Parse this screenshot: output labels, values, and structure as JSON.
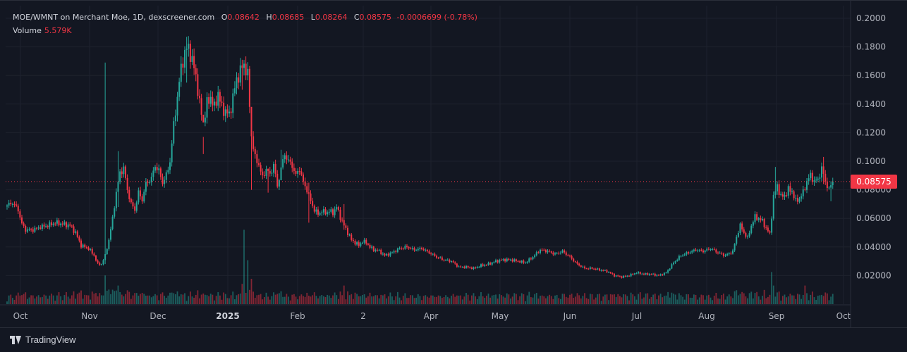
{
  "legend": {
    "symbol": "MOE/WMNT on Merchant Moe, 1D, dexscreener.com",
    "o_label": "O",
    "o": "0.08642",
    "h_label": "H",
    "h": "0.08685",
    "l_label": "L",
    "l": "0.08264",
    "c_label": "C",
    "c": "0.08575",
    "change": "-0.0006699 (-0.78%)",
    "volume_label": "Volume",
    "volume": "5.579K"
  },
  "last_price_tag": "0.08575",
  "footer": {
    "brand": "TradingView"
  },
  "colors": {
    "background": "#131722",
    "up": "#26a69a",
    "down": "#f23645",
    "grid": "#1e222d",
    "text": "#b2b5be"
  },
  "chart_data": {
    "type": "candlestick",
    "title": "MOE/WMNT on Merchant Moe, 1D, dexscreener.com",
    "ylim": [
      0,
      0.2
    ],
    "y_ticks": [
      "0.02000",
      "0.04000",
      "0.06000",
      "0.08000",
      "0.1000",
      "0.1200",
      "0.1400",
      "0.1600",
      "0.1800",
      "0.2000"
    ],
    "x_ticks": [
      {
        "label": "Oct",
        "bold": false
      },
      {
        "label": "Nov",
        "bold": false
      },
      {
        "label": "Dec",
        "bold": false
      },
      {
        "label": "2025",
        "bold": true
      },
      {
        "label": "Feb",
        "bold": false
      },
      {
        "label": "2",
        "bold": false
      },
      {
        "label": "Apr",
        "bold": false
      },
      {
        "label": "May",
        "bold": false
      },
      {
        "label": "Jun",
        "bold": false
      },
      {
        "label": "Jul",
        "bold": false
      },
      {
        "label": "Aug",
        "bold": false
      },
      {
        "label": "Sep",
        "bold": false
      },
      {
        "label": "Oct",
        "bold": false
      }
    ],
    "last_price": 0.08575,
    "close_path": [
      [
        0,
        0.069
      ],
      [
        3,
        0.071
      ],
      [
        6,
        0.066
      ],
      [
        8,
        0.056
      ],
      [
        10,
        0.052
      ],
      [
        14,
        0.052
      ],
      [
        18,
        0.054
      ],
      [
        22,
        0.055
      ],
      [
        26,
        0.057
      ],
      [
        30,
        0.056
      ],
      [
        34,
        0.055
      ],
      [
        37,
        0.05
      ],
      [
        40,
        0.041
      ],
      [
        44,
        0.039
      ],
      [
        47,
        0.034
      ],
      [
        49,
        0.028
      ],
      [
        51,
        0.028
      ],
      [
        53,
        0.034
      ],
      [
        55,
        0.045
      ],
      [
        57,
        0.06
      ],
      [
        59,
        0.078
      ],
      [
        61,
        0.092
      ],
      [
        63,
        0.095
      ],
      [
        65,
        0.08
      ],
      [
        67,
        0.07
      ],
      [
        69,
        0.066
      ],
      [
        71,
        0.078
      ],
      [
        73,
        0.073
      ],
      [
        75,
        0.084
      ],
      [
        78,
        0.088
      ],
      [
        80,
        0.097
      ],
      [
        82,
        0.093
      ],
      [
        84,
        0.085
      ],
      [
        86,
        0.09
      ],
      [
        88,
        0.1
      ],
      [
        90,
        0.125
      ],
      [
        92,
        0.145
      ],
      [
        94,
        0.165
      ],
      [
        96,
        0.176
      ],
      [
        98,
        0.18
      ],
      [
        100,
        0.17
      ],
      [
        102,
        0.16
      ],
      [
        104,
        0.14
      ],
      [
        106,
        0.127
      ],
      [
        108,
        0.14
      ],
      [
        110,
        0.145
      ],
      [
        112,
        0.137
      ],
      [
        114,
        0.148
      ],
      [
        116,
        0.137
      ],
      [
        118,
        0.135
      ],
      [
        120,
        0.132
      ],
      [
        122,
        0.145
      ],
      [
        124,
        0.157
      ],
      [
        126,
        0.163
      ],
      [
        128,
        0.168
      ],
      [
        130,
        0.16
      ],
      [
        132,
        0.118
      ],
      [
        134,
        0.102
      ],
      [
        136,
        0.098
      ],
      [
        138,
        0.088
      ],
      [
        140,
        0.095
      ],
      [
        142,
        0.09
      ],
      [
        144,
        0.098
      ],
      [
        146,
        0.082
      ],
      [
        148,
        0.095
      ],
      [
        150,
        0.105
      ],
      [
        152,
        0.1
      ],
      [
        154,
        0.097
      ],
      [
        156,
        0.09
      ],
      [
        158,
        0.095
      ],
      [
        160,
        0.085
      ],
      [
        162,
        0.08
      ],
      [
        164,
        0.072
      ],
      [
        166,
        0.066
      ],
      [
        168,
        0.063
      ],
      [
        170,
        0.065
      ],
      [
        172,
        0.064
      ],
      [
        174,
        0.065
      ],
      [
        176,
        0.064
      ],
      [
        178,
        0.068
      ],
      [
        180,
        0.061
      ],
      [
        182,
        0.055
      ],
      [
        184,
        0.05
      ],
      [
        186,
        0.045
      ],
      [
        188,
        0.043
      ],
      [
        190,
        0.041
      ],
      [
        192,
        0.044
      ],
      [
        194,
        0.043
      ],
      [
        196,
        0.04
      ],
      [
        198,
        0.038
      ],
      [
        200,
        0.038
      ],
      [
        204,
        0.034
      ],
      [
        208,
        0.036
      ],
      [
        212,
        0.039
      ],
      [
        216,
        0.04
      ],
      [
        220,
        0.038
      ],
      [
        224,
        0.039
      ],
      [
        228,
        0.036
      ],
      [
        232,
        0.033
      ],
      [
        236,
        0.031
      ],
      [
        240,
        0.03
      ],
      [
        244,
        0.026
      ],
      [
        248,
        0.026
      ],
      [
        252,
        0.025
      ],
      [
        256,
        0.027
      ],
      [
        260,
        0.028
      ],
      [
        264,
        0.03
      ],
      [
        268,
        0.031
      ],
      [
        272,
        0.031
      ],
      [
        276,
        0.03
      ],
      [
        280,
        0.029
      ],
      [
        284,
        0.033
      ],
      [
        288,
        0.038
      ],
      [
        292,
        0.037
      ],
      [
        296,
        0.035
      ],
      [
        300,
        0.037
      ],
      [
        304,
        0.033
      ],
      [
        308,
        0.028
      ],
      [
        312,
        0.025
      ],
      [
        316,
        0.025
      ],
      [
        320,
        0.024
      ],
      [
        324,
        0.023
      ],
      [
        328,
        0.02
      ],
      [
        332,
        0.019
      ],
      [
        336,
        0.02
      ],
      [
        340,
        0.022
      ],
      [
        344,
        0.021
      ],
      [
        348,
        0.021
      ],
      [
        352,
        0.02
      ],
      [
        356,
        0.022
      ],
      [
        360,
        0.029
      ],
      [
        364,
        0.034
      ],
      [
        368,
        0.036
      ],
      [
        372,
        0.038
      ],
      [
        376,
        0.037
      ],
      [
        380,
        0.039
      ],
      [
        384,
        0.036
      ],
      [
        388,
        0.034
      ],
      [
        392,
        0.037
      ],
      [
        394,
        0.047
      ],
      [
        396,
        0.055
      ],
      [
        398,
        0.05
      ],
      [
        400,
        0.046
      ],
      [
        402,
        0.055
      ],
      [
        404,
        0.061
      ],
      [
        406,
        0.06
      ],
      [
        408,
        0.058
      ],
      [
        410,
        0.053
      ],
      [
        412,
        0.049
      ],
      [
        414,
        0.075
      ],
      [
        416,
        0.083
      ],
      [
        418,
        0.075
      ],
      [
        420,
        0.076
      ],
      [
        422,
        0.08
      ],
      [
        424,
        0.079
      ],
      [
        426,
        0.072
      ],
      [
        428,
        0.074
      ],
      [
        430,
        0.078
      ],
      [
        432,
        0.086
      ],
      [
        434,
        0.09
      ],
      [
        436,
        0.086
      ],
      [
        438,
        0.087
      ],
      [
        440,
        0.095
      ],
      [
        442,
        0.086
      ],
      [
        444,
        0.08
      ],
      [
        446,
        0.0858
      ]
    ],
    "spikes": [
      {
        "day": 53,
        "high": 0.169,
        "low": 0.028
      },
      {
        "day": 60,
        "high": 0.107,
        "low": 0.068
      },
      {
        "day": 97,
        "high": 0.187,
        "low": 0.155
      },
      {
        "day": 106,
        "high": 0.117,
        "low": 0.105
      },
      {
        "day": 127,
        "high": 0.171,
        "low": 0.15
      },
      {
        "day": 132,
        "high": 0.135,
        "low": 0.08
      },
      {
        "day": 141,
        "high": 0.095,
        "low": 0.078
      },
      {
        "day": 148,
        "high": 0.108,
        "low": 0.09
      },
      {
        "day": 163,
        "high": 0.085,
        "low": 0.057
      },
      {
        "day": 182,
        "high": 0.07,
        "low": 0.052
      },
      {
        "day": 415,
        "high": 0.096,
        "low": 0.074
      },
      {
        "day": 441,
        "high": 0.103,
        "low": 0.084
      },
      {
        "day": 445,
        "high": 0.086,
        "low": 0.072
      }
    ],
    "volume_spikes": [
      {
        "day": 53,
        "value": 0.85
      },
      {
        "day": 60,
        "value": 0.55
      },
      {
        "day": 128,
        "value": 2.2
      },
      {
        "day": 130,
        "value": 1.3
      },
      {
        "day": 132,
        "value": 0.75
      },
      {
        "day": 127,
        "value": 0.6
      },
      {
        "day": 182,
        "value": 0.55
      },
      {
        "day": 413,
        "value": 0.95
      },
      {
        "day": 414,
        "value": 0.55
      },
      {
        "day": 431,
        "value": 0.55
      }
    ]
  }
}
